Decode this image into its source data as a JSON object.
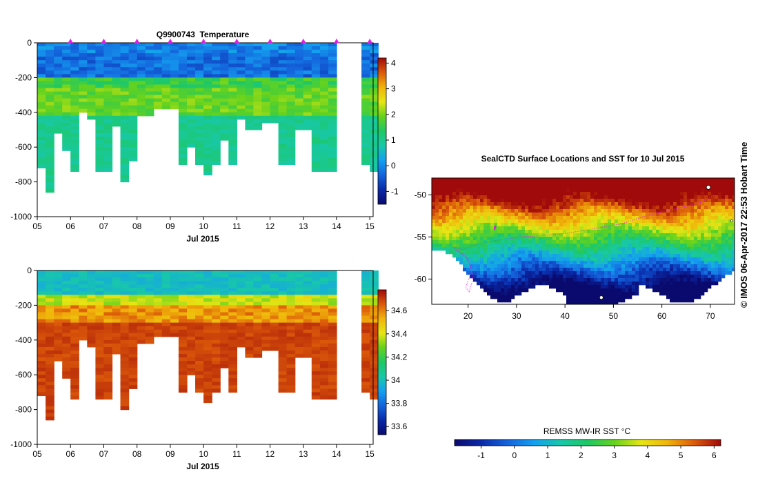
{
  "figure": {
    "credit": "© IMOS 06-Apr-2017 22:53 Hobart Time"
  },
  "chart_data": [
    {
      "type": "heatmap",
      "panel": "temperature-section",
      "title": "Q9900743  Temperature",
      "xlabel": "Jul 2015",
      "ylabel": "",
      "x_ticks": [
        "05",
        "06",
        "07",
        "08",
        "09",
        "10",
        "11",
        "12",
        "13",
        "14",
        "15"
      ],
      "y_ticks": [
        0,
        -200,
        -400,
        -600,
        -800,
        -1000
      ],
      "xlim": [
        5,
        15.1
      ],
      "ylim": [
        -1000,
        0
      ],
      "colorbar": {
        "ticks": [
          -1,
          0,
          1,
          2,
          3,
          4
        ],
        "range": [
          -1.5,
          4.2
        ]
      },
      "profile_markers_day": [
        6,
        7,
        8,
        9,
        10,
        11,
        12,
        13,
        14,
        15
      ],
      "profile_max_depth": [
        [
          5.0,
          -720
        ],
        [
          5.25,
          -860
        ],
        [
          5.5,
          -520
        ],
        [
          5.75,
          -620
        ],
        [
          6.0,
          -730
        ],
        [
          6.25,
          -400
        ],
        [
          6.5,
          -430
        ],
        [
          6.75,
          -730
        ],
        [
          7.0,
          -730
        ],
        [
          7.25,
          -470
        ],
        [
          7.5,
          -800
        ],
        [
          7.75,
          -670
        ],
        [
          8.0,
          -410
        ],
        [
          8.25,
          -410
        ],
        [
          8.5,
          -380
        ],
        [
          8.75,
          -380
        ],
        [
          9.0,
          -380
        ],
        [
          9.25,
          -700
        ],
        [
          9.5,
          -600
        ],
        [
          9.75,
          -700
        ],
        [
          10.0,
          -750
        ],
        [
          10.25,
          -700
        ],
        [
          10.5,
          -560
        ],
        [
          10.75,
          -700
        ],
        [
          11.0,
          -430
        ],
        [
          11.25,
          -500
        ],
        [
          11.5,
          -500
        ],
        [
          11.75,
          -460
        ],
        [
          12.0,
          -460
        ],
        [
          12.25,
          -700
        ],
        [
          12.5,
          -700
        ],
        [
          12.75,
          -490
        ],
        [
          13.0,
          -490
        ],
        [
          13.25,
          -740
        ],
        [
          13.5,
          -740
        ],
        [
          13.75,
          -740
        ],
        [
          14.0,
          null
        ],
        [
          14.25,
          null
        ],
        [
          14.5,
          null
        ],
        [
          14.75,
          -700
        ],
        [
          15.0,
          -740
        ]
      ],
      "layers": [
        {
          "depth_range": [
            0,
            -200
          ],
          "value": -0.3
        },
        {
          "depth_range": [
            -200,
            -300
          ],
          "value": 1.8
        },
        {
          "depth_range": [
            -300,
            -450
          ],
          "value": 1.6
        },
        {
          "depth_range": [
            -450,
            -900
          ],
          "value": 1.0
        }
      ]
    },
    {
      "type": "heatmap",
      "panel": "salinity-section",
      "title": "",
      "xlabel": "Jul 2015",
      "ylabel": "",
      "x_ticks": [
        "05",
        "06",
        "07",
        "08",
        "09",
        "10",
        "11",
        "12",
        "13",
        "14",
        "15"
      ],
      "y_ticks": [
        0,
        -200,
        -400,
        -600,
        -800,
        -1000
      ],
      "xlim": [
        5,
        15.1
      ],
      "ylim": [
        -1000,
        0
      ],
      "colorbar": {
        "ticks": [
          33.6,
          33.8,
          34,
          34.2,
          34.4,
          34.6
        ],
        "range": [
          33.53,
          34.78
        ]
      },
      "layers": [
        {
          "depth_range": [
            0,
            -160
          ],
          "value": 34.0
        },
        {
          "depth_range": [
            -160,
            -200
          ],
          "value": 34.35
        },
        {
          "depth_range": [
            -200,
            -300
          ],
          "value": 34.55
        },
        {
          "depth_range": [
            -300,
            -900
          ],
          "value": 34.7
        }
      ]
    },
    {
      "type": "heatmap",
      "panel": "sst-map",
      "title": "SealCTD Surface Locations and SST for 10 Jul 2015",
      "xlabel": "",
      "ylabel": "",
      "x_ticks": [
        "20",
        "30",
        "40",
        "50",
        "60",
        "70"
      ],
      "y_ticks": [
        "-50",
        "-55",
        "-60"
      ],
      "xlim": [
        12.5,
        75
      ],
      "ylim": [
        -63,
        -48
      ],
      "colorbar": {
        "label": "REMSS MW-IR SST °C",
        "ticks": [
          "-1",
          "0",
          "1",
          "2",
          "3",
          "4",
          "5",
          "6"
        ],
        "range": [
          -1.8,
          6.2
        ]
      }
    }
  ]
}
